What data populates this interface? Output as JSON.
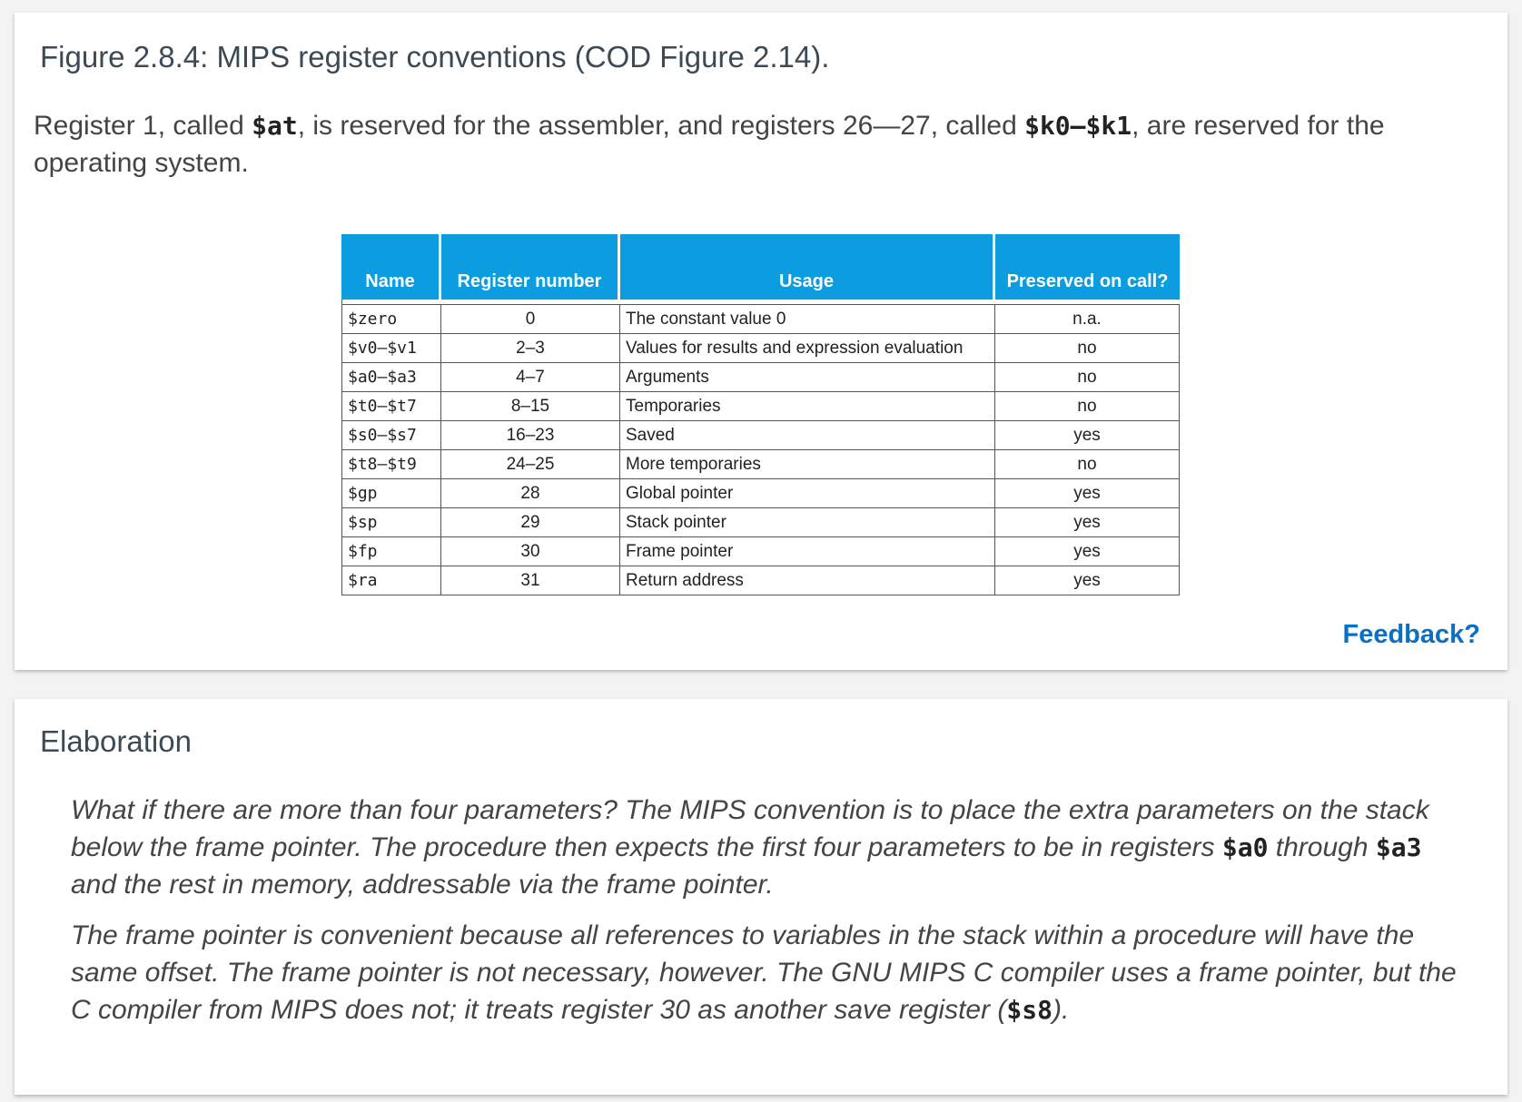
{
  "figure": {
    "title": "Figure 2.8.4: MIPS register conventions (COD Figure 2.14).",
    "caption": {
      "t1": "Register 1, called ",
      "c1": "$at",
      "t2": ", is reserved for the assembler, and registers 26—27, called ",
      "c2": "$k0—$k1",
      "t3": ", are reserved for the operating system."
    },
    "table": {
      "headers": [
        "Name",
        "Register number",
        "Usage",
        "Preserved on call?"
      ],
      "rows": [
        {
          "name": "$zero",
          "number": "0",
          "usage": "The constant value 0",
          "preserved": "n.a."
        },
        {
          "name": "$v0–$v1",
          "number": "2–3",
          "usage": "Values for results and expression evaluation",
          "preserved": "no"
        },
        {
          "name": "$a0–$a3",
          "number": "4–7",
          "usage": "Arguments",
          "preserved": "no"
        },
        {
          "name": "$t0–$t7",
          "number": "8–15",
          "usage": "Temporaries",
          "preserved": "no"
        },
        {
          "name": "$s0–$s7",
          "number": "16–23",
          "usage": "Saved",
          "preserved": "yes"
        },
        {
          "name": "$t8–$t9",
          "number": "24–25",
          "usage": "More temporaries",
          "preserved": "no"
        },
        {
          "name": "$gp",
          "number": "28",
          "usage": "Global pointer",
          "preserved": "yes"
        },
        {
          "name": "$sp",
          "number": "29",
          "usage": "Stack pointer",
          "preserved": "yes"
        },
        {
          "name": "$fp",
          "number": "30",
          "usage": "Frame pointer",
          "preserved": "yes"
        },
        {
          "name": "$ra",
          "number": "31",
          "usage": "Return address",
          "preserved": "yes"
        }
      ]
    },
    "feedback_label": "Feedback?"
  },
  "elaboration": {
    "title": "Elaboration",
    "p1": {
      "t1": "What if there are more than four parameters? The MIPS convention is to place the extra parameters on the stack below the frame pointer. The procedure then expects the first four parameters to be in registers ",
      "c1": "$a0",
      "t2": " through ",
      "c2": "$a3",
      "t3": " and the rest in memory, addressable via the frame pointer."
    },
    "p2": {
      "t1": "The frame pointer is convenient because all references to variables in the stack within a procedure will have the same offset. The frame pointer is not necessary, however. The GNU MIPS C compiler uses a frame pointer, but the C compiler from MIPS does not; it treats register 30 as another save register (",
      "c1": "$s8",
      "t2": ")."
    }
  },
  "colors": {
    "header_bg": "#0b9de0",
    "link": "#0b6fc2"
  }
}
